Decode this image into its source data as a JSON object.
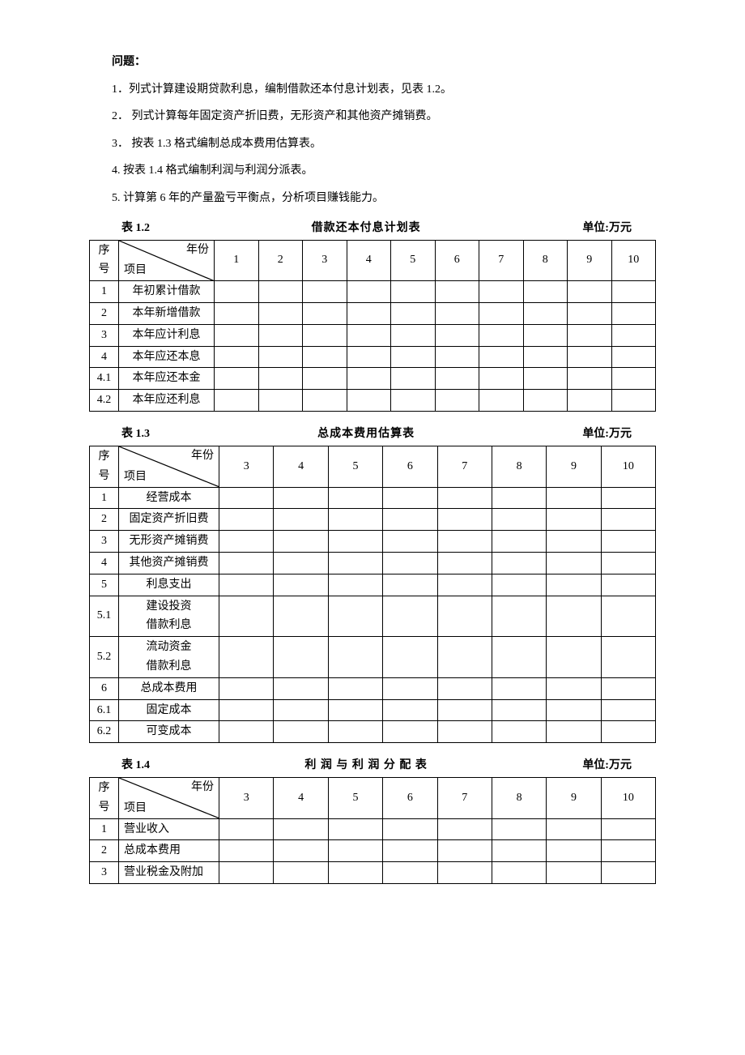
{
  "heading": "问题：",
  "questions": [
    "1．列式计算建设期贷款利息，编制借款还本付息计划表，见表 1.2。",
    "2． 列式计算每年固定资产折旧费，无形资产和其他资产摊销费。",
    "3． 按表 1.3 格式编制总成本费用估算表。",
    "4. 按表 1.4 格式编制利润与利润分派表。",
    "5. 计算第 6 年的产量盈亏平衡点，分析项目赚钱能力。"
  ],
  "diag_labels": {
    "year": "年份",
    "item": "项目"
  },
  "seq_label": "序号",
  "t12": {
    "label": "表 1.2",
    "title": "借款还本付息计划表",
    "unit": "单位:万元",
    "years": [
      "1",
      "2",
      "3",
      "4",
      "5",
      "6",
      "7",
      "8",
      "9",
      "10"
    ],
    "rows": [
      {
        "n": "1",
        "name": "年初累计借款"
      },
      {
        "n": "2",
        "name": "本年新增借款"
      },
      {
        "n": "3",
        "name": "本年应计利息"
      },
      {
        "n": "4",
        "name": "本年应还本息"
      },
      {
        "n": "4.1",
        "name": "本年应还本金"
      },
      {
        "n": "4.2",
        "name": "本年应还利息"
      }
    ]
  },
  "t13": {
    "label": "表 1.3",
    "title": "总成本费用估算表",
    "unit": "单位:万元",
    "years": [
      "3",
      "4",
      "5",
      "6",
      "7",
      "8",
      "9",
      "10"
    ],
    "rows": [
      {
        "n": "1",
        "name": "经营成本"
      },
      {
        "n": "2",
        "name": "固定资产折旧费"
      },
      {
        "n": "3",
        "name": "无形资产摊销费"
      },
      {
        "n": "4",
        "name": "其他资产摊销费"
      },
      {
        "n": "5",
        "name": "利息支出"
      },
      {
        "n": "5.1",
        "name": "建设投资\n借款利息"
      },
      {
        "n": "5.2",
        "name": "流动资金\n借款利息"
      },
      {
        "n": "6",
        "name": "总成本费用"
      },
      {
        "n": "6.1",
        "name": "固定成本"
      },
      {
        "n": "6.2",
        "name": "可变成本"
      }
    ]
  },
  "t14": {
    "label": "表 1.4",
    "title": "利 润 与 利 润 分 配 表",
    "unit": "单位:万元",
    "years": [
      "3",
      "4",
      "5",
      "6",
      "7",
      "8",
      "9",
      "10"
    ],
    "rows": [
      {
        "n": "1",
        "name": "营业收入"
      },
      {
        "n": "2",
        "name": "总成本费用"
      },
      {
        "n": "3",
        "name": "营业税金及附加"
      }
    ]
  }
}
